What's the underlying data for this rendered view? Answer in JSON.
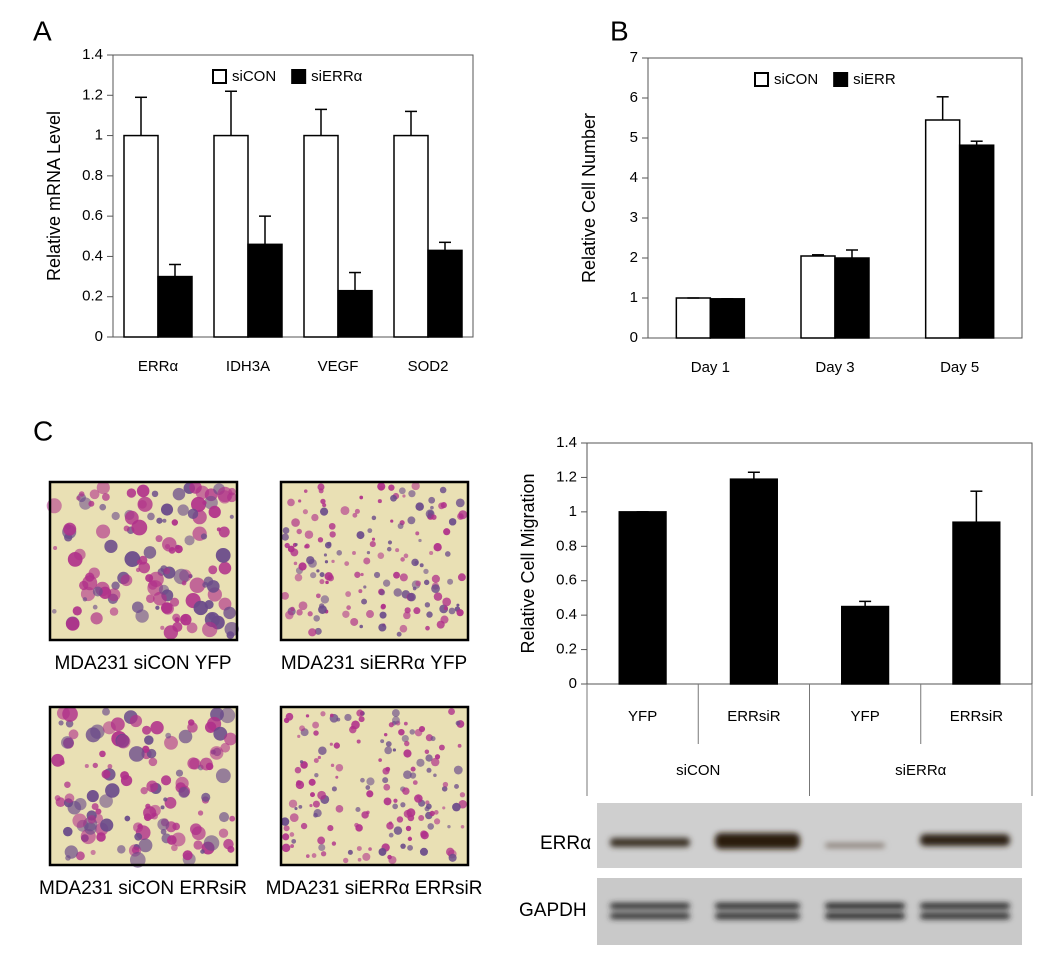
{
  "panel_labels": [
    "A",
    "B",
    "C"
  ],
  "chart_data": [
    {
      "type": "bar",
      "ylabel": "Relative mRNA Level",
      "categories": [
        "ERRα",
        "IDH3A",
        "VEGF",
        "SOD2"
      ],
      "series": [
        {
          "name": "siCON",
          "color": "#ffffff",
          "values": [
            1,
            1,
            1,
            1
          ],
          "errors": [
            0.19,
            0.22,
            0.13,
            0.12
          ]
        },
        {
          "name": "siERRα",
          "color": "#000000",
          "values": [
            0.3,
            0.46,
            0.23,
            0.43
          ],
          "errors": [
            0.06,
            0.14,
            0.09,
            0.04
          ]
        }
      ],
      "ylim": [
        0,
        1.4
      ],
      "yticks": [
        0,
        0.2,
        0.4,
        0.6,
        0.8,
        1,
        1.2,
        1.4
      ],
      "legend": "top"
    },
    {
      "type": "bar",
      "ylabel": "Relative Cell Number",
      "categories": [
        "Day 1",
        "Day 3",
        "Day 5"
      ],
      "series": [
        {
          "name": "siCON",
          "color": "#ffffff",
          "values": [
            1,
            2.05,
            5.45
          ],
          "errors": [
            0,
            0.03,
            0.58
          ]
        },
        {
          "name": "siERR",
          "color": "#000000",
          "values": [
            0.98,
            2.0,
            4.82
          ],
          "errors": [
            0,
            0.2,
            0.1
          ]
        }
      ],
      "ylim": [
        0,
        7
      ],
      "yticks": [
        0,
        1,
        2,
        3,
        4,
        5,
        6,
        7
      ],
      "legend": "top"
    },
    {
      "type": "bar",
      "ylabel": "Relative Cell Migration",
      "categories": [
        "YFP",
        "ERRsiR",
        "YFP",
        "ERRsiR"
      ],
      "groups": [
        "siCON",
        "siERRα"
      ],
      "series": [
        {
          "color": "#000000",
          "values": [
            1,
            1.19,
            0.45,
            0.94
          ],
          "errors": [
            0,
            0.04,
            0.03,
            0.18
          ]
        }
      ],
      "ylim": [
        0,
        1.4
      ],
      "yticks": [
        0,
        0.2,
        0.4,
        0.6,
        0.8,
        1,
        1.2,
        1.4
      ]
    }
  ],
  "micrographs": [
    {
      "caption": "MDA231 siCON YFP"
    },
    {
      "caption": "MDA231 siERRα YFP"
    },
    {
      "caption": "MDA231 siCON ERRsiR"
    },
    {
      "caption": "MDA231 siERRα ERRsiR"
    }
  ],
  "blot": {
    "rows": [
      "ERRα",
      "GAPDH"
    ]
  }
}
